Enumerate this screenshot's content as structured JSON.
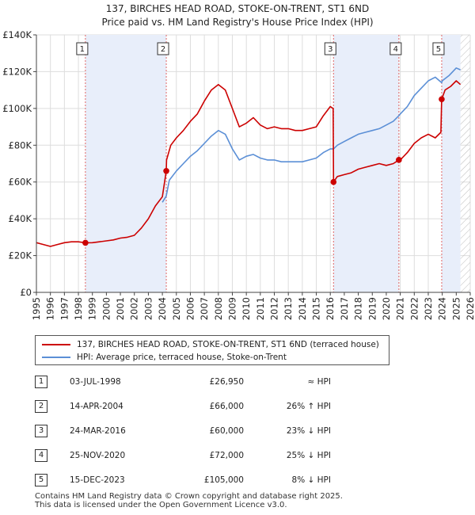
{
  "title_line1": "137, BIRCHES HEAD ROAD, STOKE-ON-TRENT, ST1 6ND",
  "title_line2": "Price paid vs. HM Land Registry's House Price Index (HPI)",
  "legend": {
    "property_label": "137, BIRCHES HEAD ROAD, STOKE-ON-TRENT, ST1 6ND (terraced house)",
    "hpi_label": "HPI: Average price, terraced house, Stoke-on-Trent"
  },
  "sales": [
    {
      "num": "1",
      "date": "03-JUL-1998",
      "price": "£26,950",
      "hpi": "≈ HPI"
    },
    {
      "num": "2",
      "date": "14-APR-2004",
      "price": "£66,000",
      "hpi": "26% ↑ HPI"
    },
    {
      "num": "3",
      "date": "24-MAR-2016",
      "price": "£60,000",
      "hpi": "23% ↓ HPI"
    },
    {
      "num": "4",
      "date": "25-NOV-2020",
      "price": "£72,000",
      "hpi": "25% ↓ HPI"
    },
    {
      "num": "5",
      "date": "15-DEC-2023",
      "price": "£105,000",
      "hpi": "8% ↓ HPI"
    }
  ],
  "footer_line1": "Contains HM Land Registry data © Crown copyright and database right 2025.",
  "footer_line2": "This data is licensed under the Open Government Licence v3.0.",
  "colors": {
    "property": "#cc0000",
    "hpi": "#5b8fd6",
    "shade": "#e8eefa",
    "grid": "#dddddd",
    "vline": "#e06666"
  },
  "chart_data": {
    "type": "line",
    "title": "137, BIRCHES HEAD ROAD, STOKE-ON-TRENT, ST1 6ND — Price paid vs. HM Land Registry's House Price Index (HPI)",
    "xlabel": "",
    "ylabel": "",
    "xlim": [
      1995,
      2026
    ],
    "ylim": [
      0,
      140000
    ],
    "x_ticks": [
      1995,
      1996,
      1997,
      1998,
      1999,
      2000,
      2001,
      2002,
      2003,
      2004,
      2005,
      2006,
      2007,
      2008,
      2009,
      2010,
      2011,
      2012,
      2013,
      2014,
      2015,
      2016,
      2017,
      2018,
      2019,
      2020,
      2021,
      2022,
      2023,
      2024,
      2025,
      2026
    ],
    "y_ticks": [
      {
        "value": 0,
        "label": "£0"
      },
      {
        "value": 20000,
        "label": "£20K"
      },
      {
        "value": 40000,
        "label": "£40K"
      },
      {
        "value": 60000,
        "label": "£60K"
      },
      {
        "value": 80000,
        "label": "£80K"
      },
      {
        "value": 100000,
        "label": "£100K"
      },
      {
        "value": 120000,
        "label": "£120K"
      },
      {
        "value": 140000,
        "label": "£140K"
      }
    ],
    "grid": true,
    "shaded_periods": [
      [
        1998.5,
        2004.28
      ],
      [
        2016.23,
        2020.9
      ],
      [
        2023.96,
        2025.3
      ]
    ],
    "future_hatch_from": 2025.3,
    "series": [
      {
        "name": "137, BIRCHES HEAD ROAD, STOKE-ON-TRENT, ST1 6ND (terraced house)",
        "x": [
          1995.0,
          1995.5,
          1996.0,
          1996.5,
          1997.0,
          1997.5,
          1998.0,
          1998.5,
          1999.0,
          1999.5,
          2000.0,
          2000.5,
          2001.0,
          2001.5,
          2002.0,
          2002.5,
          2003.0,
          2003.5,
          2004.0,
          2004.28,
          2004.3,
          2004.6,
          2005.0,
          2005.5,
          2006.0,
          2006.5,
          2007.0,
          2007.5,
          2008.0,
          2008.5,
          2009.0,
          2009.5,
          2010.0,
          2010.5,
          2011.0,
          2011.5,
          2012.0,
          2012.5,
          2013.0,
          2013.5,
          2014.0,
          2014.5,
          2015.0,
          2015.5,
          2016.0,
          2016.2,
          2016.23,
          2016.5,
          2017.0,
          2017.5,
          2018.0,
          2018.5,
          2019.0,
          2019.5,
          2020.0,
          2020.5,
          2020.9,
          2021.0,
          2021.5,
          2022.0,
          2022.5,
          2023.0,
          2023.5,
          2023.9,
          2023.96,
          2024.2,
          2024.6,
          2025.0,
          2025.3
        ],
        "y": [
          27000,
          26000,
          25000,
          26000,
          27000,
          27500,
          27500,
          26950,
          27000,
          27500,
          28000,
          28500,
          29500,
          30000,
          31000,
          35000,
          40000,
          47000,
          52000,
          66000,
          72000,
          80000,
          84000,
          88000,
          93000,
          97000,
          104000,
          110000,
          113000,
          110000,
          100000,
          90000,
          92000,
          95000,
          91000,
          89000,
          90000,
          89000,
          89000,
          88000,
          88000,
          89000,
          90000,
          96000,
          101000,
          100000,
          60000,
          63000,
          64000,
          65000,
          67000,
          68000,
          69000,
          70000,
          69000,
          70000,
          72000,
          72000,
          76000,
          81000,
          84000,
          86000,
          84000,
          87000,
          105000,
          110000,
          112000,
          115000,
          113000
        ]
      },
      {
        "name": "HPI: Average price, terraced house, Stoke-on-Trent",
        "x": [
          2004.0,
          2004.28,
          2004.5,
          2005.0,
          2005.5,
          2006.0,
          2006.5,
          2007.0,
          2007.5,
          2008.0,
          2008.5,
          2009.0,
          2009.5,
          2010.0,
          2010.5,
          2011.0,
          2011.5,
          2012.0,
          2012.5,
          2013.0,
          2013.5,
          2014.0,
          2014.5,
          2015.0,
          2015.5,
          2016.0,
          2016.23,
          2016.5,
          2017.0,
          2017.5,
          2018.0,
          2018.5,
          2019.0,
          2019.5,
          2020.0,
          2020.5,
          2020.9,
          2021.0,
          2021.5,
          2022.0,
          2022.5,
          2023.0,
          2023.5,
          2023.96,
          2024.0,
          2024.5,
          2025.0,
          2025.3
        ],
        "y": [
          49000,
          52400,
          61000,
          66000,
          70000,
          74000,
          77000,
          81000,
          85000,
          88000,
          86000,
          78000,
          72000,
          74000,
          75000,
          73000,
          72000,
          72000,
          71000,
          71000,
          71000,
          71000,
          72000,
          73000,
          76000,
          78000,
          78000,
          80000,
          82000,
          84000,
          86000,
          87000,
          88000,
          89000,
          91000,
          93000,
          96000,
          97000,
          101000,
          107000,
          111000,
          115000,
          117000,
          114000,
          115000,
          118000,
          122000,
          121000
        ]
      }
    ],
    "sales_markers": [
      {
        "label": "1",
        "x": 1998.5,
        "y": 26950
      },
      {
        "label": "2",
        "x": 2004.28,
        "y": 66000
      },
      {
        "label": "3",
        "x": 2016.23,
        "y": 60000
      },
      {
        "label": "4",
        "x": 2020.9,
        "y": 72000
      },
      {
        "label": "5",
        "x": 2023.96,
        "y": 105000
      }
    ]
  }
}
